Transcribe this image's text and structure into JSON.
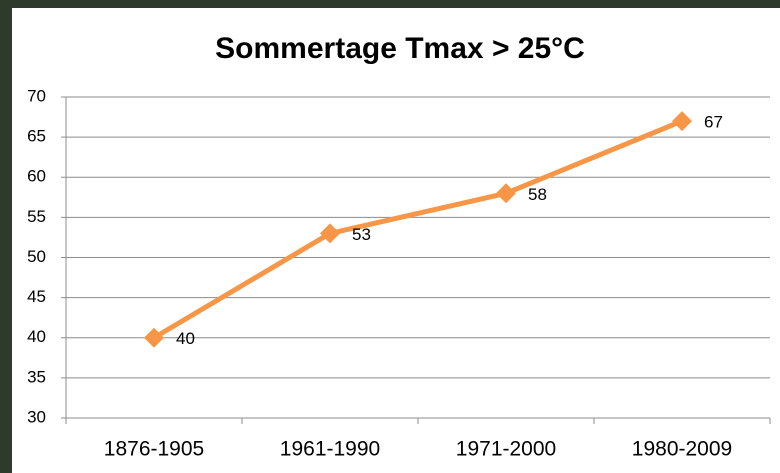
{
  "chart_data": {
    "type": "line",
    "title": "Sommertage Tmax > 25°C",
    "categories": [
      "1876-1905",
      "1961-1990",
      "1971-2000",
      "1980-2009"
    ],
    "values": [
      40,
      53,
      58,
      67
    ],
    "color": "#f79646",
    "ylim": [
      30,
      70
    ],
    "yticks": [
      30,
      35,
      40,
      45,
      50,
      55,
      60,
      65,
      70
    ],
    "grid": true
  }
}
